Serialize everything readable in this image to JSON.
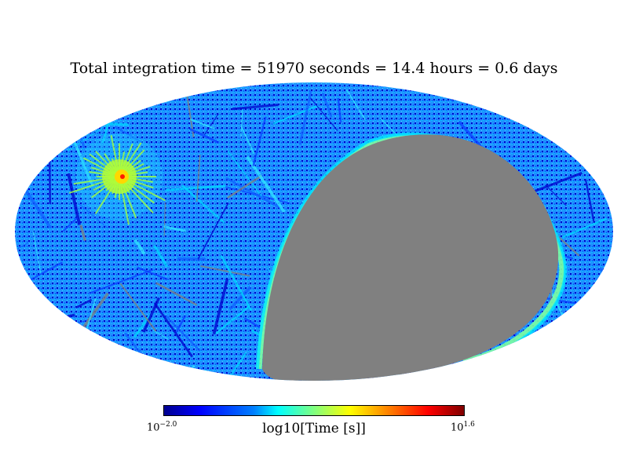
{
  "title": "Total integration time = 51970 seconds = 14.4 hours = 0.6 days",
  "map": {
    "projection": "mollweide",
    "empty_color": "#808080",
    "colormap": "jet"
  },
  "colorbar": {
    "label": "log10[Time [s]]",
    "min_base": "10",
    "min_exp": "−2.0",
    "max_base": "10",
    "max_exp": "1.6",
    "min_value": -2.0,
    "max_value": 1.6
  }
}
